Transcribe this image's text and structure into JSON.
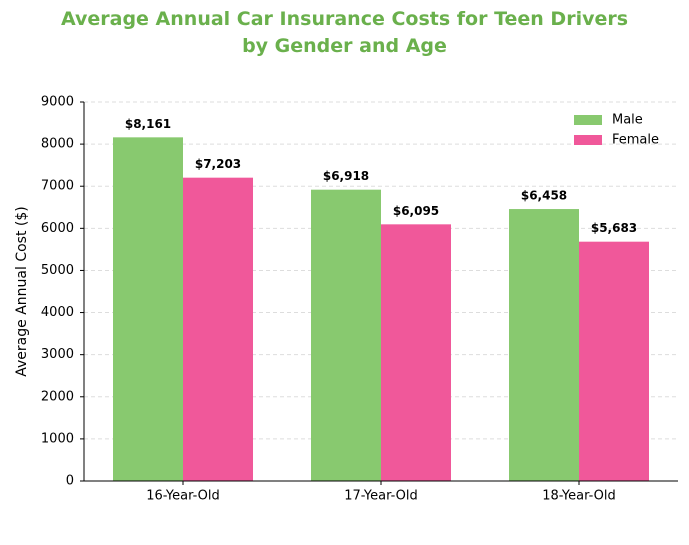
{
  "chart_data": {
    "type": "bar",
    "title": "Average Annual Car Insurance Costs for Teen Drivers\nby Gender and Age",
    "ylabel": "Average Annual Cost ($)",
    "categories": [
      "16-Year-Old",
      "17-Year-Old",
      "18-Year-Old"
    ],
    "series": [
      {
        "name": "Male",
        "color": "#88c96f",
        "values": [
          8161,
          6918,
          6458
        ],
        "value_labels": [
          "$8,161",
          "$6,918",
          "$6,458"
        ]
      },
      {
        "name": "Female",
        "color": "#f0589a",
        "values": [
          7203,
          6095,
          5683
        ],
        "value_labels": [
          "$7,203",
          "$6,095",
          "$5,683"
        ]
      }
    ],
    "ylim": [
      0,
      9000
    ],
    "yticks": [
      0,
      1000,
      2000,
      3000,
      4000,
      5000,
      6000,
      7000,
      8000,
      9000
    ],
    "grid": true,
    "legend": "upper right"
  }
}
